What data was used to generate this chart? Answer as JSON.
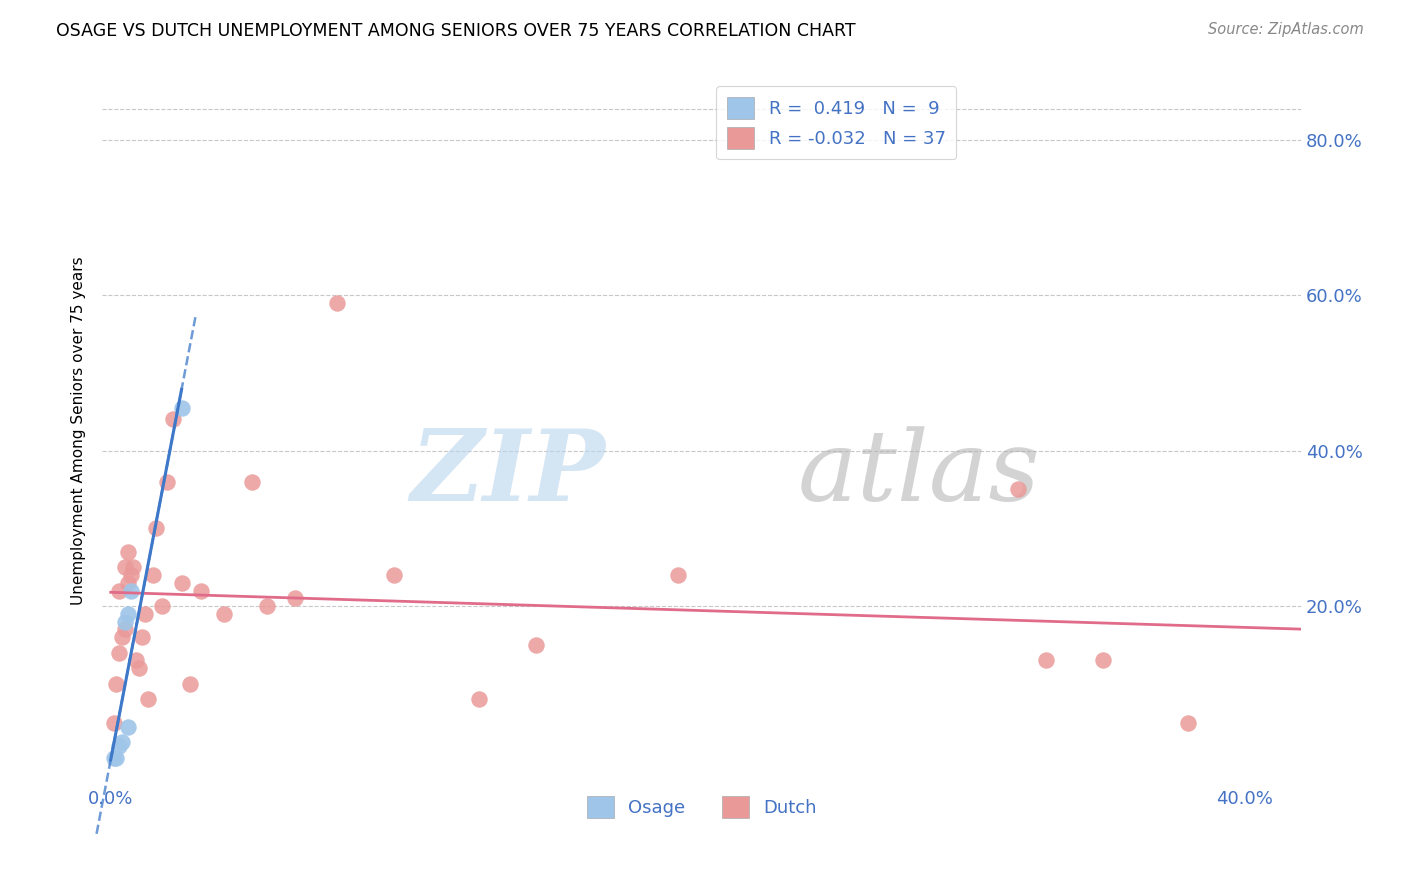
{
  "title": "OSAGE VS DUTCH UNEMPLOYMENT AMONG SENIORS OVER 75 YEARS CORRELATION CHART",
  "source": "Source: ZipAtlas.com",
  "tick_color": "#4472c4",
  "ylabel": "Unemployment Among Seniors over 75 years",
  "xlim": [
    -0.003,
    0.42
  ],
  "ylim": [
    -0.03,
    0.88
  ],
  "x_ticks": [
    0.0,
    0.4
  ],
  "y_ticks_right": [
    0.2,
    0.4,
    0.6,
    0.8
  ],
  "osage_color": "#9fc5e8",
  "dutch_color": "#ea9999",
  "osage_line_color": "#3d78c9",
  "dutch_line_color": "#e06c8a",
  "osage_R": 0.419,
  "osage_N": 9,
  "dutch_R": -0.032,
  "dutch_N": 37,
  "legend_text_color": "#4472c4",
  "watermark_zip": "ZIP",
  "watermark_atlas": "atlas",
  "background_color": "#ffffff",
  "grid_color": "#c8c8c8",
  "osage_x": [
    0.001,
    0.002,
    0.003,
    0.004,
    0.005,
    0.006,
    0.006,
    0.007,
    0.025
  ],
  "osage_y": [
    0.005,
    0.005,
    0.02,
    0.025,
    0.18,
    0.19,
    0.045,
    0.22,
    0.455
  ],
  "dutch_x": [
    0.001,
    0.002,
    0.003,
    0.003,
    0.004,
    0.005,
    0.005,
    0.006,
    0.006,
    0.007,
    0.008,
    0.009,
    0.01,
    0.011,
    0.012,
    0.013,
    0.015,
    0.016,
    0.018,
    0.02,
    0.022,
    0.025,
    0.028,
    0.032,
    0.04,
    0.05,
    0.055,
    0.065,
    0.08,
    0.1,
    0.13,
    0.15,
    0.2,
    0.32,
    0.33,
    0.35,
    0.38
  ],
  "dutch_y": [
    0.05,
    0.1,
    0.14,
    0.22,
    0.16,
    0.17,
    0.25,
    0.23,
    0.27,
    0.24,
    0.25,
    0.13,
    0.12,
    0.16,
    0.19,
    0.08,
    0.24,
    0.3,
    0.2,
    0.36,
    0.44,
    0.23,
    0.1,
    0.22,
    0.19,
    0.36,
    0.2,
    0.21,
    0.59,
    0.24,
    0.08,
    0.15,
    0.24,
    0.35,
    0.13,
    0.13,
    0.05
  ]
}
